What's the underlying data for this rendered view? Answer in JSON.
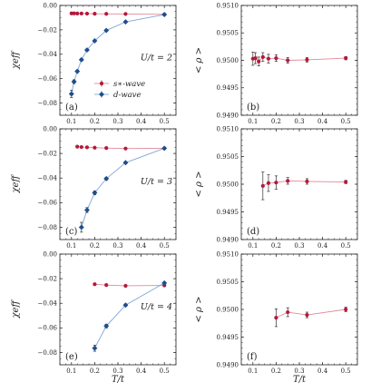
{
  "colors": {
    "s_wave": "#b5193a",
    "d_wave": "#1f4e8c",
    "s_line": "#e08a9a",
    "d_line": "#7ea6d6"
  },
  "chart_data": {
    "type": "scatter",
    "xlabel": "T/t",
    "xlim": [
      0.05,
      0.55
    ],
    "xticks": [
      "0.1",
      "0.2",
      "0.3",
      "0.4",
      "0.5"
    ],
    "legend": {
      "placement": "center-right",
      "entries": [
        "s∗-wave",
        "d-wave"
      ]
    },
    "panels": [
      {
        "id": "a",
        "label": "(a)",
        "annotation": "U/t = 2",
        "ylabel": "χeff",
        "ylim": [
          -0.09,
          0.0
        ],
        "yticks": [
          "0.00",
          "−0.02",
          "−0.04",
          "−0.06",
          "−0.08"
        ],
        "series": [
          {
            "name": "s∗-wave",
            "x": [
              0.1,
              0.111,
              0.125,
              0.143,
              0.167,
              0.2,
              0.25,
              0.333,
              0.5
            ],
            "y": [
              -0.0065,
              -0.0065,
              -0.0066,
              -0.0066,
              -0.0067,
              -0.0068,
              -0.0069,
              -0.007,
              -0.0073
            ],
            "err": [
              0.0005,
              0.0005,
              0.0005,
              0.0005,
              0.0005,
              0.0005,
              0.0005,
              0.0005,
              0.0005
            ]
          },
          {
            "name": "d-wave",
            "x": [
              0.1,
              0.111,
              0.125,
              0.143,
              0.167,
              0.2,
              0.25,
              0.333,
              0.5
            ],
            "y": [
              -0.0725,
              -0.0625,
              -0.054,
              -0.0445,
              -0.0365,
              -0.029,
              -0.0205,
              -0.0135,
              -0.0075
            ],
            "err": [
              0.003,
              0.0015,
              0.001,
              0.001,
              0.0008,
              0.0006,
              0.0005,
              0.0005,
              0.0005
            ]
          }
        ]
      },
      {
        "id": "b",
        "label": "(b)",
        "annotation": "",
        "ylabel": "< ρ >",
        "ylim": [
          0.949,
          0.951
        ],
        "yticks": [
          "0.9510",
          "0.9505",
          "0.9500",
          "0.9495",
          "0.9490"
        ],
        "series": [
          {
            "name": "ρ",
            "x": [
              0.1,
              0.111,
              0.125,
              0.143,
              0.167,
              0.2,
              0.25,
              0.333,
              0.5
            ],
            "y": [
              0.95003,
              0.95004,
              0.94998,
              0.95006,
              0.95003,
              0.95004,
              0.95,
              0.95001,
              0.95004
            ],
            "err": [
              0.00012,
              0.0001,
              8e-05,
              8e-05,
              8e-05,
              6e-05,
              5e-05,
              4e-05,
              3e-05
            ]
          }
        ]
      },
      {
        "id": "c",
        "label": "(c)",
        "annotation": "U/t = 3",
        "ylabel": "χeff",
        "ylim": [
          -0.09,
          0.0
        ],
        "yticks": [
          "0.00",
          "−0.02",
          "−0.04",
          "−0.06",
          "−0.08"
        ],
        "series": [
          {
            "name": "s∗-wave",
            "x": [
              0.125,
              0.143,
              0.167,
              0.2,
              0.25,
              0.333,
              0.5
            ],
            "y": [
              -0.0145,
              -0.0148,
              -0.015,
              -0.0153,
              -0.0156,
              -0.016,
              -0.0158
            ],
            "err": [
              0.0008,
              0.0007,
              0.0006,
              0.0006,
              0.0005,
              0.0005,
              0.0005
            ]
          },
          {
            "name": "d-wave",
            "x": [
              0.143,
              0.167,
              0.2,
              0.25,
              0.333,
              0.5
            ],
            "y": [
              -0.08,
              -0.066,
              -0.052,
              -0.0405,
              -0.0275,
              -0.0158
            ],
            "err": [
              0.004,
              0.002,
              0.0015,
              0.001,
              0.0008,
              0.0005
            ]
          }
        ]
      },
      {
        "id": "d",
        "label": "(d)",
        "annotation": "",
        "ylabel": "< ρ >",
        "ylim": [
          0.949,
          0.951
        ],
        "yticks": [
          "0.9510",
          "0.9505",
          "0.9500",
          "0.9495",
          "0.9490"
        ],
        "series": [
          {
            "name": "ρ",
            "x": [
              0.143,
              0.167,
              0.2,
              0.25,
              0.333,
              0.5
            ],
            "y": [
              0.94997,
              0.95002,
              0.95003,
              0.95006,
              0.95005,
              0.95004
            ],
            "err": [
              0.00025,
              0.00015,
              0.00012,
              6e-05,
              5e-05,
              3e-05
            ]
          }
        ]
      },
      {
        "id": "e",
        "label": "(e)",
        "annotation": "U/t = 4",
        "ylabel": "χeff",
        "ylim": [
          -0.09,
          0.0
        ],
        "yticks": [
          "0.00",
          "−0.02",
          "−0.04",
          "−0.06",
          "−0.08"
        ],
        "series": [
          {
            "name": "s∗-wave",
            "x": [
              0.2,
              0.25,
              0.333,
              0.5
            ],
            "y": [
              -0.0245,
              -0.0252,
              -0.0258,
              -0.0255
            ],
            "err": [
              0.0008,
              0.0007,
              0.0006,
              0.0005
            ]
          },
          {
            "name": "d-wave",
            "x": [
              0.2,
              0.25,
              0.333,
              0.5
            ],
            "y": [
              -0.0765,
              -0.0585,
              -0.0415,
              -0.0235
            ],
            "err": [
              0.0025,
              0.0015,
              0.001,
              0.0006
            ]
          }
        ]
      },
      {
        "id": "f",
        "label": "(f)",
        "annotation": "",
        "ylabel": "< ρ >",
        "ylim": [
          0.949,
          0.951
        ],
        "yticks": [
          "0.9510",
          "0.9505",
          "0.9500",
          "0.9495",
          "0.9490"
        ],
        "series": [
          {
            "name": "ρ",
            "x": [
              0.2,
              0.25,
              0.333,
              0.5
            ],
            "y": [
              0.94985,
              0.94995,
              0.9499,
              0.95
            ],
            "err": [
              0.00016,
              8e-05,
              5e-05,
              4e-05
            ]
          }
        ]
      }
    ]
  }
}
